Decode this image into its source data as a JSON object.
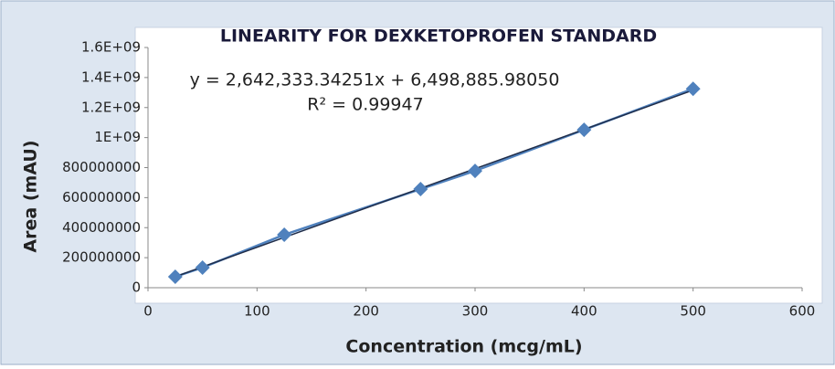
{
  "chart_data": {
    "type": "scatter",
    "title": "LINEARITY FOR DEXKETOPROFEN STANDARD",
    "xlabel": "Concentration (mcg/mL)",
    "ylabel": "Area (mAU)",
    "annotations": [
      "y = 2,642,333.34251x + 6,498,885.98050",
      "R² = 0.99947"
    ],
    "x": [
      25,
      50,
      125,
      250,
      300,
      400,
      500
    ],
    "series": [
      {
        "color": "#4f81bd",
        "values": [
          73000000,
          134000000,
          353000000,
          657000000,
          778000000,
          1052000000,
          1325000000
        ]
      }
    ],
    "xlim": [
      0,
      600
    ],
    "xticks": [
      0,
      100,
      200,
      300,
      400,
      500,
      600
    ],
    "ylim": [
      0,
      1600000000
    ],
    "yticks": [
      0,
      200000000,
      400000000,
      600000000,
      800000000,
      {
        "value": 1000000000,
        "label": "1E+09"
      },
      {
        "value": 1200000000,
        "label": "1.2E+09"
      },
      {
        "value": 1400000000,
        "label": "1.4E+09"
      },
      {
        "value": 1600000000,
        "label": "1.6E+09"
      }
    ],
    "trendline": true,
    "trendline_color": "#1f2d4a"
  }
}
